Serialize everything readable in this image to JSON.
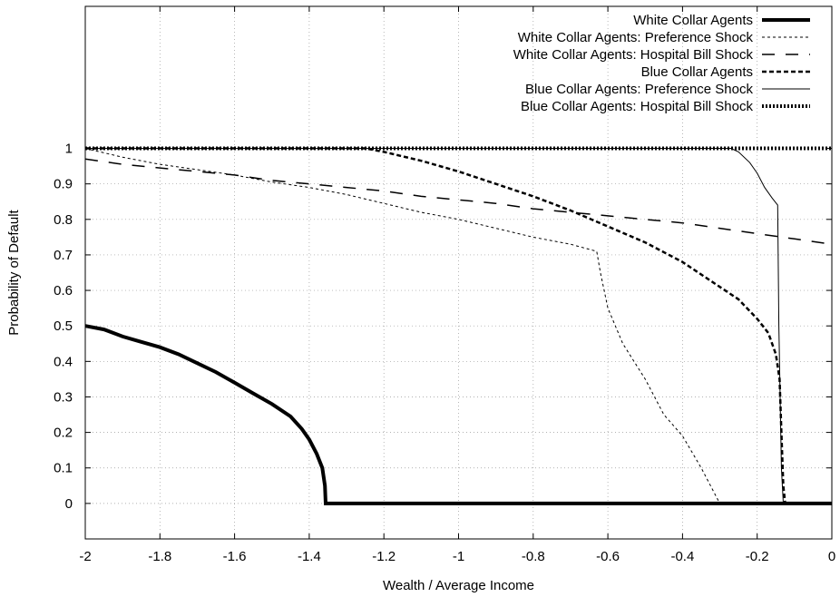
{
  "chart_data": {
    "type": "line",
    "title": "",
    "xlabel": "Wealth / Average Income",
    "ylabel": "Probability of Default",
    "xlim": [
      -2,
      0
    ],
    "ylim": [
      -0.1,
      1.4
    ],
    "xticks": [
      -2,
      -1.8,
      -1.6,
      -1.4,
      -1.2,
      -1,
      -0.8,
      -0.6,
      -0.4,
      -0.2,
      0
    ],
    "xtick_labels": [
      "-2",
      "-1.8",
      "-1.6",
      "-1.4",
      "-1.2",
      "-1",
      "-0.8",
      "-0.6",
      "-0.4",
      "-0.2",
      "0"
    ],
    "yticks": [
      0,
      0.1,
      0.2,
      0.3,
      0.4,
      0.5,
      0.6,
      0.7,
      0.8,
      0.9,
      1
    ],
    "ytick_labels": [
      "0",
      "0.1",
      "0.2",
      "0.3",
      "0.4",
      "0.5",
      "0.6",
      "0.7",
      "0.8",
      "0.9",
      "1"
    ],
    "grid": true,
    "legend_position": "top-right",
    "series": [
      {
        "name": "White Collar Agents",
        "style": "thick-solid",
        "points": [
          [
            -2,
            0.5
          ],
          [
            -1.95,
            0.49
          ],
          [
            -1.9,
            0.47
          ],
          [
            -1.85,
            0.455
          ],
          [
            -1.8,
            0.44
          ],
          [
            -1.75,
            0.42
          ],
          [
            -1.7,
            0.395
          ],
          [
            -1.65,
            0.37
          ],
          [
            -1.6,
            0.34
          ],
          [
            -1.55,
            0.31
          ],
          [
            -1.5,
            0.28
          ],
          [
            -1.45,
            0.245
          ],
          [
            -1.42,
            0.21
          ],
          [
            -1.4,
            0.18
          ],
          [
            -1.38,
            0.14
          ],
          [
            -1.365,
            0.1
          ],
          [
            -1.358,
            0.05
          ],
          [
            -1.356,
            0
          ],
          [
            0,
            0
          ]
        ]
      },
      {
        "name": "White Collar Agents: Preference Shock",
        "style": "fine-dashed",
        "points": [
          [
            -2,
            1
          ],
          [
            -1.9,
            0.975
          ],
          [
            -1.8,
            0.955
          ],
          [
            -1.7,
            0.94
          ],
          [
            -1.6,
            0.925
          ],
          [
            -1.5,
            0.905
          ],
          [
            -1.4,
            0.89
          ],
          [
            -1.3,
            0.87
          ],
          [
            -1.2,
            0.845
          ],
          [
            -1.1,
            0.82
          ],
          [
            -1,
            0.8
          ],
          [
            -0.9,
            0.775
          ],
          [
            -0.8,
            0.75
          ],
          [
            -0.7,
            0.73
          ],
          [
            -0.63,
            0.71
          ],
          [
            -0.62,
            0.65
          ],
          [
            -0.6,
            0.55
          ],
          [
            -0.56,
            0.45
          ],
          [
            -0.5,
            0.35
          ],
          [
            -0.45,
            0.25
          ],
          [
            -0.4,
            0.19
          ],
          [
            -0.35,
            0.1
          ],
          [
            -0.3,
            0
          ]
        ]
      },
      {
        "name": "White Collar Agents: Hospital Bill Shock",
        "style": "long-dashed",
        "points": [
          [
            -2,
            0.97
          ],
          [
            -1.9,
            0.955
          ],
          [
            -1.8,
            0.945
          ],
          [
            -1.7,
            0.935
          ],
          [
            -1.6,
            0.925
          ],
          [
            -1.5,
            0.91
          ],
          [
            -1.4,
            0.9
          ],
          [
            -1.3,
            0.89
          ],
          [
            -1.2,
            0.88
          ],
          [
            -1.1,
            0.865
          ],
          [
            -1,
            0.855
          ],
          [
            -0.9,
            0.845
          ],
          [
            -0.8,
            0.83
          ],
          [
            -0.7,
            0.82
          ],
          [
            -0.6,
            0.81
          ],
          [
            -0.5,
            0.8
          ],
          [
            -0.4,
            0.79
          ],
          [
            -0.3,
            0.775
          ],
          [
            -0.2,
            0.76
          ],
          [
            -0.1,
            0.745
          ],
          [
            0,
            0.73
          ]
        ]
      },
      {
        "name": "Blue Collar Agents",
        "style": "medium-dashed",
        "points": [
          [
            -2,
            1
          ],
          [
            -1.25,
            1
          ],
          [
            -1.2,
            0.99
          ],
          [
            -1.1,
            0.965
          ],
          [
            -1,
            0.935
          ],
          [
            -0.9,
            0.9
          ],
          [
            -0.8,
            0.865
          ],
          [
            -0.7,
            0.825
          ],
          [
            -0.6,
            0.78
          ],
          [
            -0.5,
            0.735
          ],
          [
            -0.4,
            0.68
          ],
          [
            -0.3,
            0.61
          ],
          [
            -0.25,
            0.575
          ],
          [
            -0.2,
            0.52
          ],
          [
            -0.17,
            0.48
          ],
          [
            -0.15,
            0.42
          ],
          [
            -0.14,
            0.35
          ],
          [
            -0.135,
            0.2
          ],
          [
            -0.13,
            0.05
          ],
          [
            -0.125,
            0
          ],
          [
            0,
            0
          ]
        ]
      },
      {
        "name": "Blue Collar Agents: Preference Shock",
        "style": "thin-solid",
        "points": [
          [
            -2,
            1
          ],
          [
            -0.27,
            1
          ],
          [
            -0.25,
            0.99
          ],
          [
            -0.22,
            0.96
          ],
          [
            -0.2,
            0.93
          ],
          [
            -0.18,
            0.89
          ],
          [
            -0.16,
            0.86
          ],
          [
            -0.145,
            0.84
          ],
          [
            -0.142,
            0.5
          ],
          [
            -0.135,
            0.1
          ],
          [
            -0.13,
            0
          ],
          [
            0,
            0
          ]
        ]
      },
      {
        "name": "Blue Collar Agents: Hospital Bill Shock",
        "style": "thick-dotted",
        "points": [
          [
            -2,
            1
          ],
          [
            0,
            1
          ]
        ]
      }
    ]
  }
}
